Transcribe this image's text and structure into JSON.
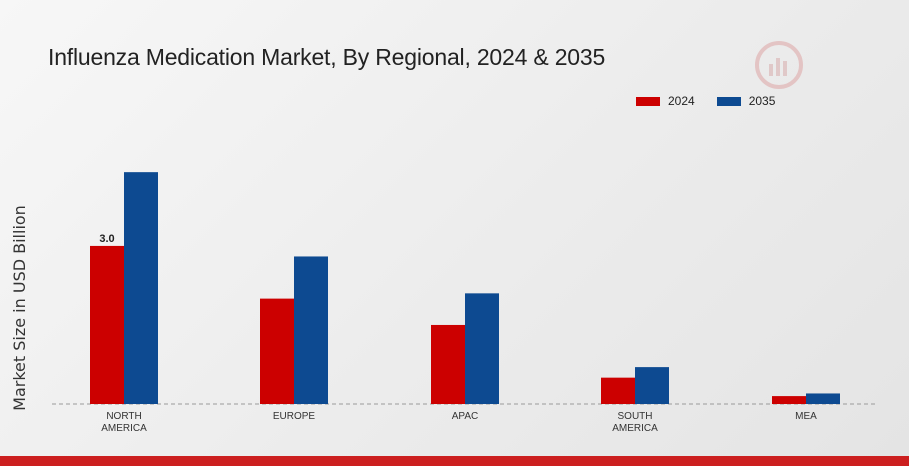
{
  "chart_data": {
    "type": "bar",
    "title": "Influenza Medication Market, By Regional, 2024 & 2035",
    "ylabel": "Market Size in USD Billion",
    "xlabel": "",
    "categories": [
      "NORTH AMERICA",
      "EUROPE",
      "APAC",
      "SOUTH AMERICA",
      "MEA"
    ],
    "category_lines": [
      [
        "NORTH",
        "AMERICA"
      ],
      [
        "EUROPE"
      ],
      [
        "APAC"
      ],
      [
        "SOUTH",
        "AMERICA"
      ],
      [
        "MEA"
      ]
    ],
    "series": [
      {
        "name": "2024",
        "color": "#cc0000",
        "values": [
          3.0,
          2.0,
          1.5,
          0.5,
          0.15
        ]
      },
      {
        "name": "2035",
        "color": "#0d4a91",
        "values": [
          4.4,
          2.8,
          2.1,
          0.7,
          0.2
        ]
      }
    ],
    "data_labels": [
      {
        "series": 0,
        "index": 0,
        "text": "3.0"
      }
    ],
    "ylim": [
      0,
      5.2
    ],
    "grid": false,
    "legend_position": "top-right"
  }
}
